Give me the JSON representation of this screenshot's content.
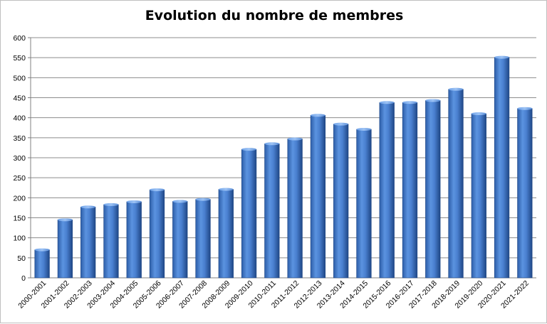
{
  "chart_data": {
    "type": "bar",
    "title": "Evolution du nombre de membres",
    "xlabel": "",
    "ylabel": "",
    "ylim": [
      0,
      600
    ],
    "ytick_step": 50,
    "grid": true,
    "legend": "none",
    "bar_color": "#4a80d0",
    "categories": [
      "2000-2001",
      "2001-2002",
      "2002-2003",
      "2003-2004",
      "2004-2005",
      "2005-2006",
      "2006-2007",
      "2007-2008",
      "2008-2009",
      "2009-2010",
      "2010-2011",
      "2011-2012",
      "2012-2013",
      "2013-2014",
      "2014-2015",
      "2015-2016",
      "2016-2017",
      "2017-2018",
      "2018-2019",
      "2019-2020",
      "2020-2021",
      "2021-2022"
    ],
    "values": [
      70,
      145,
      177,
      183,
      190,
      220,
      191,
      196,
      221,
      321,
      335,
      347,
      406,
      384,
      371,
      438,
      438,
      443,
      471,
      410,
      551,
      423
    ]
  }
}
